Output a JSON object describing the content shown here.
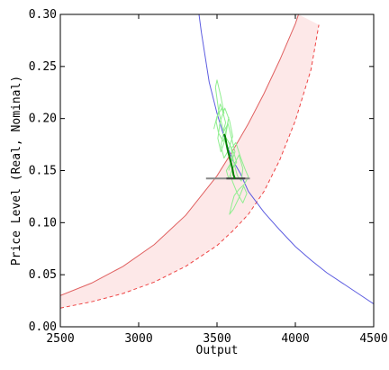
{
  "chart_data": {
    "type": "line",
    "xlabel": "Output",
    "ylabel": "Price Level (Real, Nominal)",
    "xlim": [
      2500,
      4500
    ],
    "ylim": [
      0,
      0.3
    ],
    "grid": false,
    "x_ticks": [
      "2500",
      "3000",
      "3500",
      "4000",
      "4500"
    ],
    "y_ticks": [
      "0.00",
      "0.05",
      "0.10",
      "0.15",
      "0.20",
      "0.25",
      "0.30"
    ],
    "colors": {
      "solid_curve": "#e06060",
      "dashed_curve": "#ee4444",
      "band_fill": "#fde8e8",
      "demand_curve": "#5c5ce0",
      "walk": "#90ee90",
      "walk_recent": "#008000",
      "reference": "#888888"
    },
    "band": {
      "upper": {
        "x": [
          2500,
          2700,
          2900,
          3100,
          3300,
          3500,
          3600,
          3700,
          3800,
          3900,
          4000,
          4020
        ],
        "y": [
          0.03,
          0.042,
          0.058,
          0.079,
          0.107,
          0.145,
          0.169,
          0.195,
          0.224,
          0.256,
          0.291,
          0.3
        ]
      },
      "lower": {
        "x": [
          2500,
          2700,
          2900,
          3100,
          3300,
          3500,
          3600,
          3700,
          3800,
          3900,
          4000,
          4100,
          4150
        ],
        "y": [
          0.018,
          0.024,
          0.032,
          0.043,
          0.058,
          0.078,
          0.092,
          0.108,
          0.13,
          0.16,
          0.198,
          0.247,
          0.29
        ]
      }
    },
    "demand": {
      "x": [
        3385,
        3400,
        3450,
        3500,
        3550,
        3600,
        3650,
        3700,
        3800,
        3900,
        4000,
        4100,
        4200,
        4300,
        4400,
        4500
      ],
      "y": [
        0.3,
        0.283,
        0.235,
        0.205,
        0.18,
        0.16,
        0.147,
        0.13,
        0.11,
        0.093,
        0.077,
        0.064,
        0.052,
        0.042,
        0.032,
        0.022
      ]
    },
    "walk": {
      "x": [
        3480,
        3500,
        3530,
        3555,
        3540,
        3510,
        3490,
        3500,
        3525,
        3545,
        3520,
        3495,
        3510,
        3540,
        3560,
        3575,
        3550,
        3525,
        3505,
        3520,
        3550,
        3580,
        3600,
        3575,
        3545,
        3525,
        3545,
        3570,
        3595,
        3615,
        3590,
        3560,
        3575,
        3610,
        3640,
        3665,
        3655,
        3630,
        3605,
        3590,
        3620,
        3650,
        3680,
        3700,
        3675,
        3640,
        3610,
        3595,
        3580,
        3605,
        3640,
        3670,
        3690,
        3665,
        3630,
        3600,
        3585,
        3600,
        3625,
        3610,
        3590,
        3575,
        3560,
        3580,
        3600,
        3590,
        3580,
        3575
      ],
      "y": [
        0.19,
        0.202,
        0.21,
        0.196,
        0.188,
        0.208,
        0.23,
        0.237,
        0.221,
        0.205,
        0.214,
        0.197,
        0.186,
        0.178,
        0.19,
        0.201,
        0.179,
        0.168,
        0.181,
        0.197,
        0.21,
        0.198,
        0.183,
        0.17,
        0.162,
        0.174,
        0.188,
        0.195,
        0.18,
        0.168,
        0.158,
        0.15,
        0.142,
        0.156,
        0.165,
        0.152,
        0.14,
        0.145,
        0.159,
        0.171,
        0.177,
        0.163,
        0.151,
        0.144,
        0.137,
        0.132,
        0.126,
        0.118,
        0.108,
        0.113,
        0.124,
        0.135,
        0.128,
        0.119,
        0.128,
        0.139,
        0.146,
        0.152,
        0.158,
        0.166,
        0.172,
        0.177,
        0.181,
        0.176,
        0.168,
        0.16,
        0.153,
        0.15
      ]
    },
    "walk_recent": {
      "x": [
        3545,
        3552,
        3560,
        3568,
        3575,
        3583,
        3590,
        3598,
        3605,
        3615
      ],
      "y": [
        0.185,
        0.183,
        0.176,
        0.17,
        0.166,
        0.161,
        0.157,
        0.152,
        0.146,
        0.142
      ]
    },
    "reference_line": {
      "x": [
        3430,
        3710
      ],
      "y": [
        0.1425,
        0.1425
      ]
    },
    "reference_line_dark": {
      "x": [
        3560,
        3680
      ],
      "y": [
        0.1425,
        0.1425
      ]
    }
  }
}
